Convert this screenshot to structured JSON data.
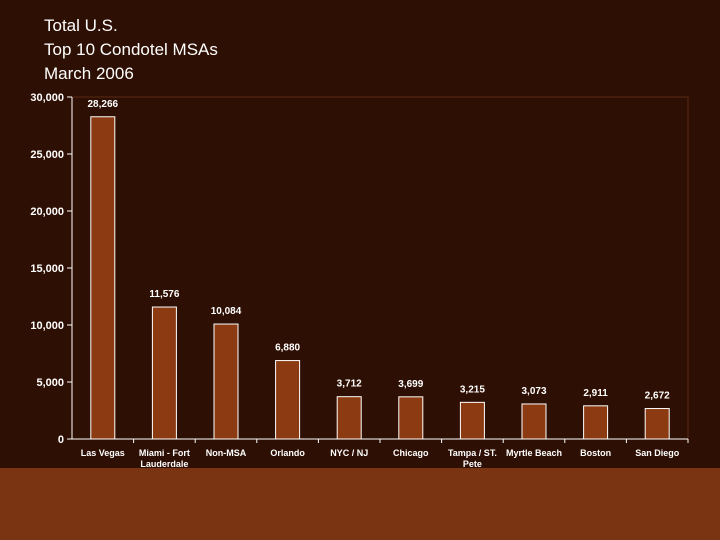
{
  "colors": {
    "background": "#2e0f03",
    "bar": "#8b3a12",
    "bar_edge": "#ffffff",
    "axis": "#ffffff",
    "footer": "#7a3411"
  },
  "chart_data": {
    "type": "bar",
    "title": [
      "Total U.S.",
      "Top 10 Condotel MSAs",
      "March 2006"
    ],
    "xlabel": "",
    "ylabel": "",
    "ylim": [
      0,
      30000
    ],
    "yticks": [
      {
        "value": 0,
        "label": "0"
      },
      {
        "value": 5000,
        "label": "5,000"
      },
      {
        "value": 10000,
        "label": "10,000"
      },
      {
        "value": 15000,
        "label": "15,000"
      },
      {
        "value": 20000,
        "label": "20,000"
      },
      {
        "value": 25000,
        "label": "25,000"
      },
      {
        "value": 30000,
        "label": "30,000"
      }
    ],
    "categories": [
      [
        "Las Vegas"
      ],
      [
        "Miami - Fort",
        "Lauderdale"
      ],
      [
        "Non-MSA"
      ],
      [
        "Orlando"
      ],
      [
        "NYC / NJ"
      ],
      [
        "Chicago"
      ],
      [
        "Tampa / ST.",
        "Pete"
      ],
      [
        "Myrtle Beach"
      ],
      [
        "Boston"
      ],
      [
        "San Diego"
      ]
    ],
    "values": [
      28266,
      11576,
      10084,
      6880,
      3712,
      3699,
      3215,
      3073,
      2911,
      2672
    ],
    "value_labels": [
      "28,266",
      "11,576",
      "10,084",
      "6,880",
      "3,712",
      "3,699",
      "3,215",
      "3,073",
      "2,911",
      "2,672"
    ],
    "grid": false,
    "legend": "none"
  }
}
